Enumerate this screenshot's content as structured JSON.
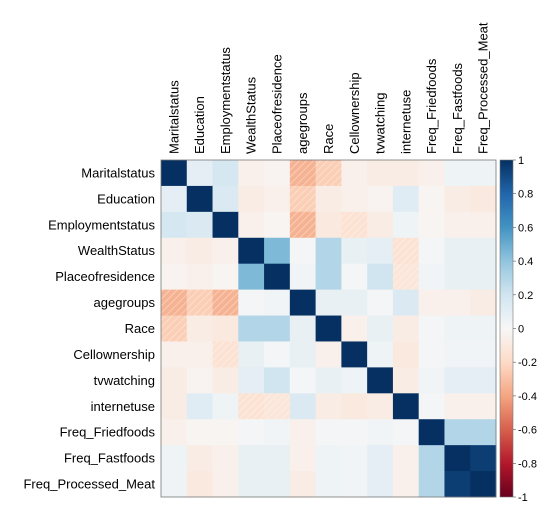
{
  "chart_data": {
    "type": "heatmap",
    "title": "",
    "variables": [
      "Maritalstatus",
      "Education",
      "Employmentstatus",
      "WealthStatus",
      "Placeofresidence",
      "agegroups",
      "Race",
      "Cellownership",
      "tvwatching",
      "internetuse",
      "Freq_Friedfoods",
      "Freq_Fastfoods",
      "Freq_Processed_Meat"
    ],
    "matrix": [
      [
        1.0,
        0.1,
        0.18,
        -0.05,
        -0.03,
        -0.35,
        -0.25,
        -0.05,
        -0.08,
        -0.08,
        -0.05,
        0.05,
        0.05
      ],
      [
        0.1,
        1.0,
        0.15,
        -0.08,
        -0.05,
        -0.25,
        -0.08,
        -0.05,
        -0.03,
        0.12,
        -0.02,
        -0.08,
        -0.1
      ],
      [
        0.18,
        0.15,
        1.0,
        -0.05,
        -0.02,
        -0.35,
        -0.1,
        -0.15,
        -0.08,
        0.05,
        -0.02,
        -0.05,
        -0.05
      ],
      [
        -0.05,
        -0.08,
        -0.05,
        1.0,
        0.45,
        0.02,
        0.3,
        0.08,
        0.1,
        -0.15,
        0.02,
        0.08,
        0.08
      ],
      [
        -0.03,
        -0.05,
        -0.02,
        0.45,
        1.0,
        0.03,
        0.3,
        0.02,
        0.2,
        -0.12,
        0.03,
        0.08,
        0.08
      ],
      [
        -0.35,
        -0.25,
        -0.35,
        0.02,
        0.03,
        1.0,
        0.08,
        0.08,
        0.02,
        0.15,
        -0.05,
        -0.05,
        -0.08
      ],
      [
        -0.25,
        -0.08,
        -0.1,
        0.3,
        0.3,
        0.08,
        1.0,
        -0.05,
        0.08,
        -0.08,
        0.02,
        0.05,
        0.05
      ],
      [
        -0.05,
        -0.05,
        -0.15,
        0.08,
        0.02,
        0.08,
        -0.05,
        1.0,
        0.05,
        -0.1,
        0.02,
        0.03,
        0.03
      ],
      [
        -0.08,
        -0.03,
        -0.08,
        0.1,
        0.2,
        0.02,
        0.08,
        0.05,
        1.0,
        -0.08,
        0.03,
        0.1,
        0.1
      ],
      [
        -0.08,
        0.12,
        0.05,
        -0.15,
        -0.12,
        0.15,
        -0.08,
        -0.1,
        -0.08,
        1.0,
        0.02,
        -0.05,
        -0.05
      ],
      [
        -0.05,
        -0.02,
        -0.02,
        0.02,
        0.03,
        -0.05,
        0.02,
        0.02,
        0.03,
        0.02,
        1.0,
        0.3,
        0.3
      ],
      [
        0.05,
        -0.08,
        -0.05,
        0.08,
        0.08,
        -0.05,
        0.05,
        0.03,
        0.1,
        -0.05,
        0.3,
        1.0,
        0.95
      ],
      [
        0.05,
        -0.1,
        -0.05,
        0.08,
        0.08,
        -0.08,
        0.05,
        0.03,
        0.1,
        -0.05,
        0.3,
        0.95,
        1.0
      ]
    ],
    "colorbar": {
      "range": [
        -1,
        1
      ],
      "ticks": [
        "1",
        "0.8",
        "0.6",
        "0.4",
        "0.2",
        "0",
        "-0.2",
        "-0.4",
        "-0.6",
        "-0.8",
        "-1"
      ],
      "tick_values": [
        1,
        0.8,
        0.6,
        0.4,
        0.2,
        0,
        -0.2,
        -0.4,
        -0.6,
        -0.8,
        -1
      ],
      "colors": {
        "negative_end": "#67001f",
        "midpoint": "#f7f7f7",
        "positive_end": "#053061"
      }
    },
    "negative_cells_hatched": true,
    "grid": false,
    "legend_position": "right"
  }
}
